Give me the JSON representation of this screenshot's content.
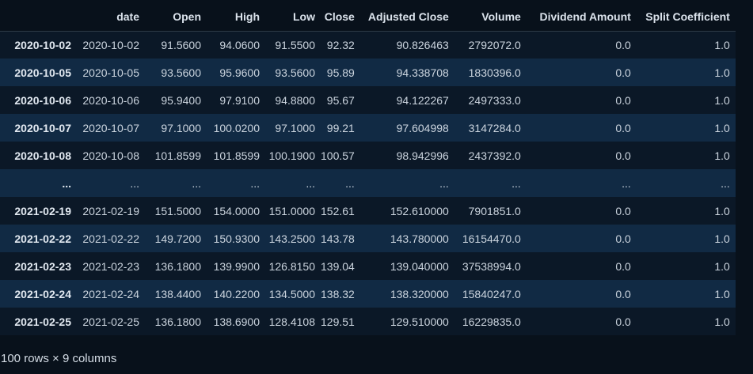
{
  "table": {
    "columns": [
      "",
      "date",
      "Open",
      "High",
      "Low",
      "Close",
      "Adjusted Close",
      "Volume",
      "Dividend Amount",
      "Split Coefficient"
    ],
    "rows": [
      [
        "2020-10-02",
        "2020-10-02",
        "91.5600",
        "94.0600",
        "91.5500",
        "92.32",
        "90.826463",
        "2792072.0",
        "0.0",
        "1.0"
      ],
      [
        "2020-10-05",
        "2020-10-05",
        "93.5600",
        "95.9600",
        "93.5600",
        "95.89",
        "94.338708",
        "1830396.0",
        "0.0",
        "1.0"
      ],
      [
        "2020-10-06",
        "2020-10-06",
        "95.9400",
        "97.9100",
        "94.8800",
        "95.67",
        "94.122267",
        "2497333.0",
        "0.0",
        "1.0"
      ],
      [
        "2020-10-07",
        "2020-10-07",
        "97.1000",
        "100.0200",
        "97.1000",
        "99.21",
        "97.604998",
        "3147284.0",
        "0.0",
        "1.0"
      ],
      [
        "2020-10-08",
        "2020-10-08",
        "101.8599",
        "101.8599",
        "100.1900",
        "100.57",
        "98.942996",
        "2437392.0",
        "0.0",
        "1.0"
      ],
      [
        "...",
        "...",
        "...",
        "...",
        "...",
        "...",
        "...",
        "...",
        "...",
        "..."
      ],
      [
        "2021-02-19",
        "2021-02-19",
        "151.5000",
        "154.0000",
        "151.0000",
        "152.61",
        "152.610000",
        "7901851.0",
        "0.0",
        "1.0"
      ],
      [
        "2021-02-22",
        "2021-02-22",
        "149.7200",
        "150.9300",
        "143.2500",
        "143.78",
        "143.780000",
        "16154470.0",
        "0.0",
        "1.0"
      ],
      [
        "2021-02-23",
        "2021-02-23",
        "136.1800",
        "139.9900",
        "126.8150",
        "139.04",
        "139.040000",
        "37538994.0",
        "0.0",
        "1.0"
      ],
      [
        "2021-02-24",
        "2021-02-24",
        "138.4400",
        "140.2200",
        "134.5000",
        "138.32",
        "138.320000",
        "15840247.0",
        "0.0",
        "1.0"
      ],
      [
        "2021-02-25",
        "2021-02-25",
        "136.1800",
        "138.6900",
        "128.4108",
        "129.51",
        "129.510000",
        "16229835.0",
        "0.0",
        "1.0"
      ]
    ]
  },
  "footer": {
    "shape_text": "100 rows × 9 columns"
  }
}
